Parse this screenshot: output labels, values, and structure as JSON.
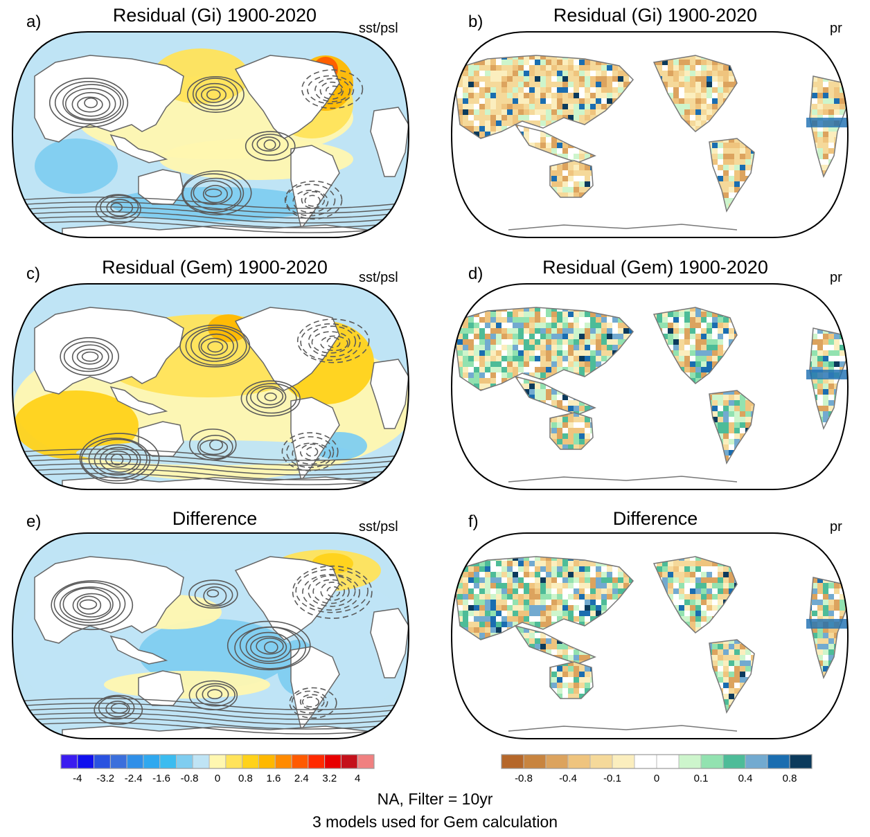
{
  "panels": [
    {
      "id": "a",
      "label": "a)",
      "title": "Residual (Gi) 1900-2020",
      "var": "sst/psl",
      "kind": "sst",
      "tone": "warm_north"
    },
    {
      "id": "b",
      "label": "b)",
      "title": "Residual (Gi) 1900-2020",
      "var": "pr",
      "kind": "pr",
      "tone": "dry"
    },
    {
      "id": "c",
      "label": "c)",
      "title": "Residual (Gem) 1900-2020",
      "var": "sst/psl",
      "kind": "sst",
      "tone": "warm"
    },
    {
      "id": "d",
      "label": "d)",
      "title": "Residual (Gem) 1900-2020",
      "var": "pr",
      "kind": "pr",
      "tone": "mixed"
    },
    {
      "id": "e",
      "label": "e)",
      "title": "Difference",
      "var": "sst/psl",
      "kind": "sst",
      "tone": "cool"
    },
    {
      "id": "f",
      "label": "f)",
      "title": "Difference",
      "var": "pr",
      "kind": "pr",
      "tone": "mixed"
    }
  ],
  "colorbars": {
    "sst": {
      "colors": [
        "#3a1cf0",
        "#1010ee",
        "#2a52e0",
        "#3b6fdc",
        "#2f8fe8",
        "#2fa8ef",
        "#3bbcf0",
        "#7fcdf0",
        "#bfe4f5",
        "#fff7b0",
        "#ffe35a",
        "#ffd21a",
        "#ffb800",
        "#ff8a00",
        "#ff5a00",
        "#ff2a00",
        "#e80000",
        "#c4101a",
        "#f08080"
      ],
      "ticks": [
        "-4",
        "-3.2",
        "-2.4",
        "-1.6",
        "-0.8",
        "0",
        "0.8",
        "1.6",
        "2.4",
        "3.2",
        "4"
      ]
    },
    "pr": {
      "colors": [
        "#b5672a",
        "#c8843f",
        "#dca35e",
        "#efc47e",
        "#f5d99a",
        "#fbeebe",
        "#ffffff",
        "#ffffff",
        "#cdf5cc",
        "#92e2b0",
        "#4dbc98",
        "#72aad0",
        "#1a6db0",
        "#0b3a5c"
      ],
      "ticks": [
        "-0.8",
        "-0.4",
        "-0.1",
        "0",
        "0.1",
        "0.4",
        "0.8"
      ]
    }
  },
  "footer": {
    "line1": "NA, Filter = 10yr",
    "line2": "3 models used for Gem calculation"
  }
}
